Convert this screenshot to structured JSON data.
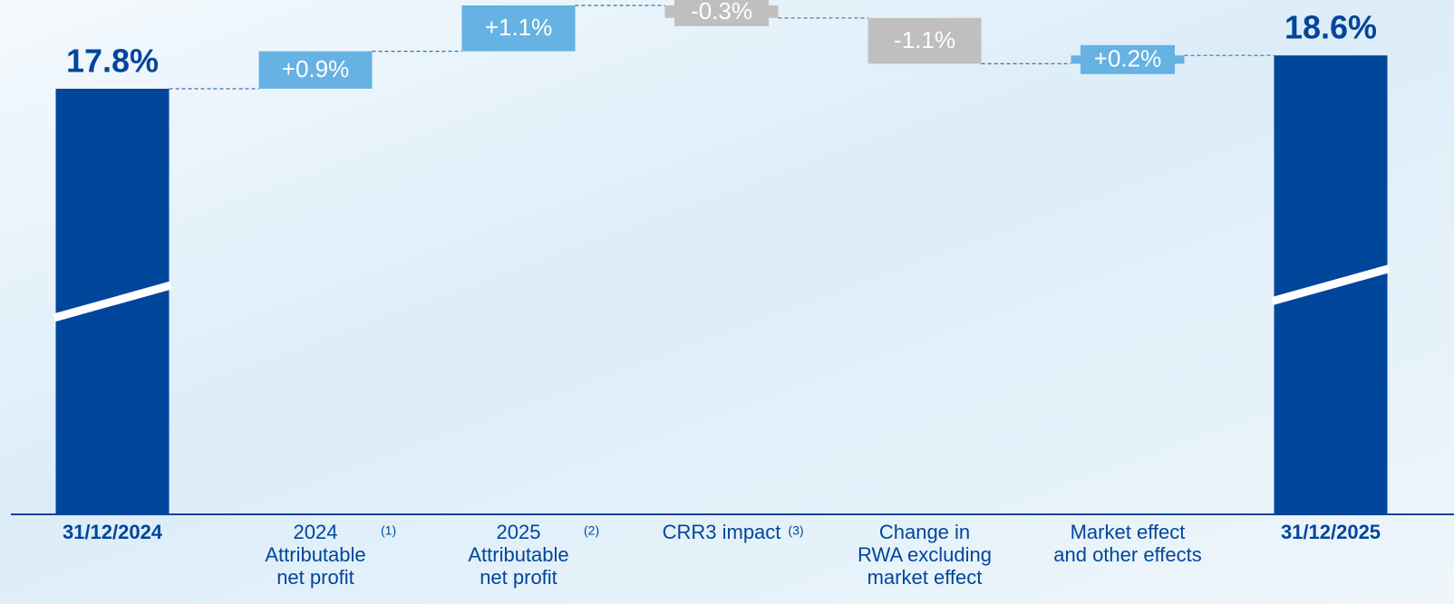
{
  "chart_data": {
    "type": "waterfall",
    "categories": [
      [
        "31/12/2024"
      ],
      [
        "2024",
        "Attributable",
        "net profit"
      ],
      [
        "2025",
        "Attributable",
        "net profit"
      ],
      [
        "CRR3 impact"
      ],
      [
        "Change in",
        "RWA excluding",
        "market effect"
      ],
      [
        "Market effect",
        "and other effects"
      ],
      [
        "31/12/2025"
      ]
    ],
    "category_notes": [
      null,
      "(1)",
      "(2)",
      "(3)",
      null,
      null,
      null
    ],
    "values": [
      17.8,
      0.9,
      1.1,
      -0.3,
      -1.1,
      0.2,
      18.6
    ],
    "value_labels": [
      "17.8%",
      "+0.9%",
      "+1.1%",
      "-0.3%",
      "-1.1%",
      "+0.2%",
      "18.6%"
    ],
    "totals": [
      true,
      false,
      false,
      false,
      false,
      false,
      true
    ],
    "colors": {
      "total": "#00469b",
      "increase": "#65b2e3",
      "decrease": "#bfbfbf"
    }
  }
}
